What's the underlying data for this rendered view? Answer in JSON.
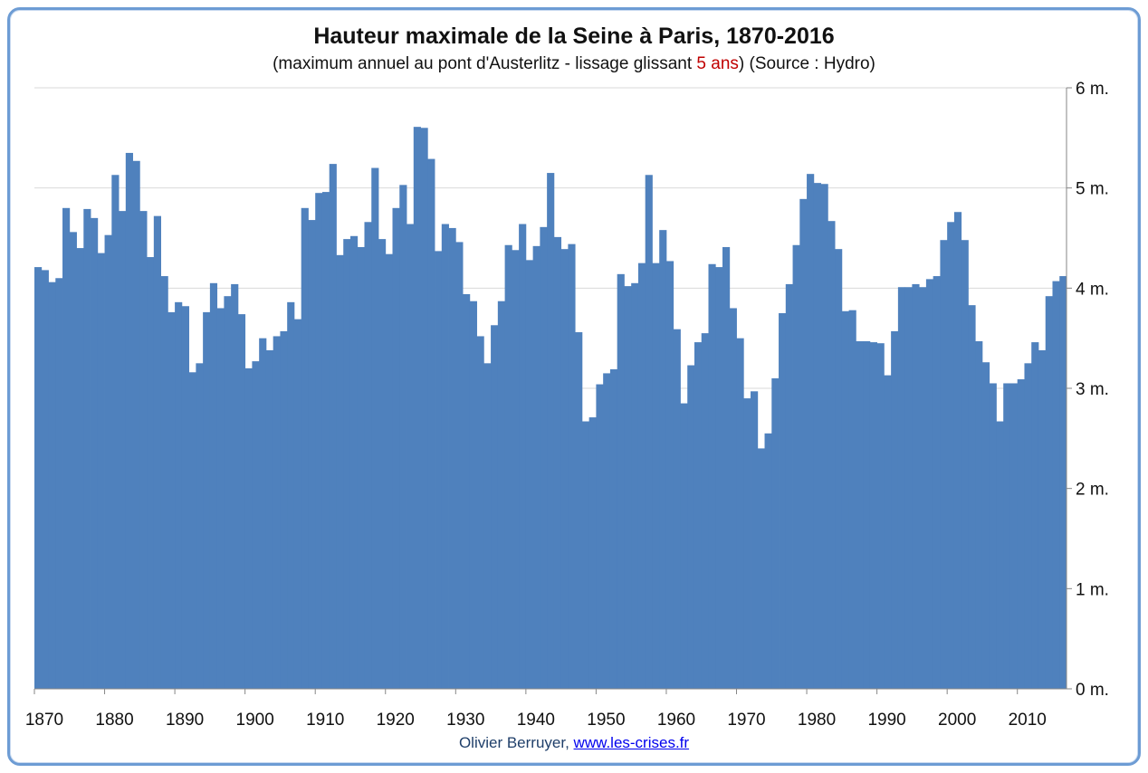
{
  "chart_data": {
    "type": "bar",
    "title": "Hauteur maximale de la Seine à Paris, 1870-2016",
    "subtitle": {
      "before": "(maximum annuel au pont d'Austerlitz - lissage glissant ",
      "highlight": "5 ans",
      "after": ") (Source : Hydro)"
    },
    "x_start": 1870,
    "x_end": 2016,
    "ylim": [
      0,
      6
    ],
    "y_ticks": [
      {
        "value": 0,
        "label": "0 m."
      },
      {
        "value": 1,
        "label": "1 m."
      },
      {
        "value": 2,
        "label": "2 m."
      },
      {
        "value": 3,
        "label": "3 m."
      },
      {
        "value": 4,
        "label": "4 m."
      },
      {
        "value": 5,
        "label": "5 m."
      },
      {
        "value": 6,
        "label": "6 m."
      }
    ],
    "x_ticks": [
      1870,
      1880,
      1890,
      1900,
      1910,
      1920,
      1930,
      1940,
      1950,
      1960,
      1970,
      1980,
      1990,
      2000,
      2010
    ],
    "grid": true,
    "y_axis_side": "right",
    "bar_color": "#4f81bd",
    "values": [
      4.21,
      4.18,
      4.06,
      4.1,
      4.8,
      4.56,
      4.4,
      4.79,
      4.7,
      4.35,
      4.53,
      5.13,
      4.77,
      5.35,
      5.27,
      4.77,
      4.31,
      4.72,
      4.12,
      3.76,
      3.86,
      3.82,
      3.16,
      3.25,
      3.76,
      4.05,
      3.8,
      3.92,
      4.04,
      3.74,
      3.2,
      3.27,
      3.5,
      3.38,
      3.52,
      3.57,
      3.86,
      3.69,
      4.8,
      4.68,
      4.95,
      4.96,
      5.24,
      4.33,
      4.49,
      4.52,
      4.41,
      4.66,
      5.2,
      4.49,
      4.34,
      4.8,
      5.03,
      4.64,
      5.61,
      5.6,
      5.29,
      4.37,
      4.64,
      4.6,
      4.46,
      3.94,
      3.87,
      3.52,
      3.25,
      3.63,
      3.87,
      4.43,
      4.38,
      4.64,
      4.28,
      4.42,
      4.61,
      5.15,
      4.51,
      4.39,
      4.44,
      3.56,
      2.67,
      2.71,
      3.04,
      3.15,
      3.19,
      4.14,
      4.02,
      4.05,
      4.25,
      5.13,
      4.25,
      4.58,
      4.27,
      3.59,
      2.85,
      3.23,
      3.46,
      3.55,
      4.24,
      4.21,
      4.41,
      3.8,
      3.5,
      2.9,
      2.97,
      2.4,
      2.55,
      3.1,
      3.75,
      4.04,
      4.43,
      4.89,
      5.14,
      5.05,
      5.04,
      4.67,
      4.39,
      3.77,
      3.78,
      3.47,
      3.47,
      3.46,
      3.45,
      3.13,
      3.57,
      4.01,
      4.01,
      4.04,
      4.01,
      4.09,
      4.12,
      4.48,
      4.66,
      4.76,
      4.48,
      3.83,
      3.47,
      3.26,
      3.05,
      2.67,
      3.05,
      3.05,
      3.09,
      3.25,
      3.46,
      3.38,
      3.92,
      4.07,
      4.12
    ]
  },
  "footer": {
    "author": "Olivier Berruyer,",
    "link_text": "www.les-crises.fr"
  }
}
